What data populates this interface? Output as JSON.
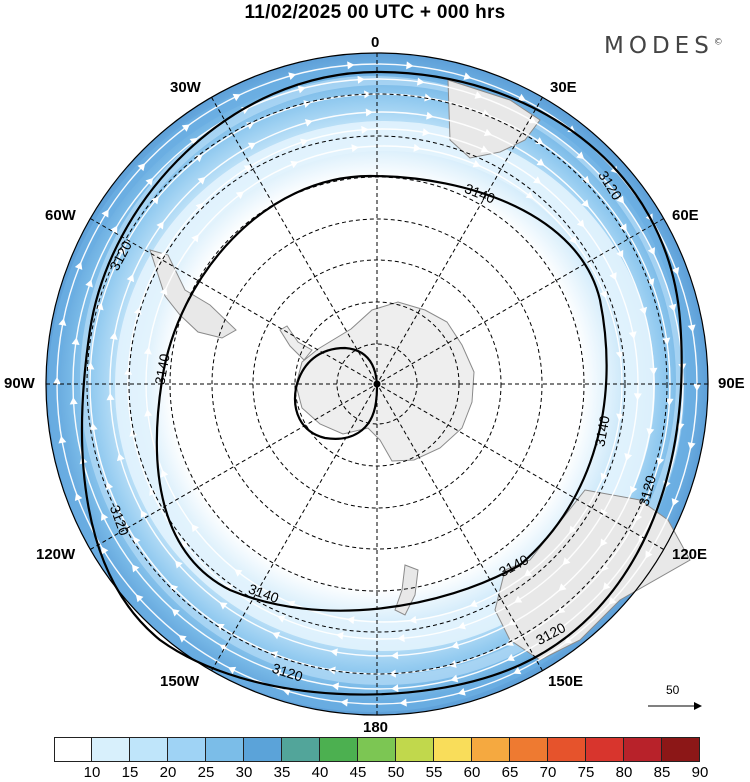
{
  "title": "11/02/2025  00 UTC  + 000 hrs",
  "brand": "MODES",
  "brand_mark": "©",
  "longitude_labels": {
    "n0": "0",
    "e30": "30E",
    "e60": "60E",
    "e90": "90E",
    "e120": "120E",
    "e150": "150E",
    "s180": "180",
    "w150": "150W",
    "w120": "120W",
    "w90": "90W",
    "w60": "60W",
    "w30": "30W"
  },
  "contour_labels": {
    "outer": "3120",
    "inner": "3140"
  },
  "reference_vector": "50",
  "colorbar": {
    "ticks": [
      "10",
      "15",
      "20",
      "25",
      "30",
      "35",
      "40",
      "45",
      "50",
      "55",
      "60",
      "65",
      "70",
      "75",
      "80",
      "85",
      "90"
    ],
    "colors": [
      "#ffffff",
      "#d8f0fc",
      "#bfe5fa",
      "#9fd3f5",
      "#7bbde8",
      "#5ba3d9",
      "#52a59a",
      "#4cb050",
      "#7cc653",
      "#c1d84c",
      "#f9dd5a",
      "#f5a940",
      "#ee7a31",
      "#e6532c",
      "#d8352d",
      "#b8222a",
      "#8c1717"
    ]
  }
}
